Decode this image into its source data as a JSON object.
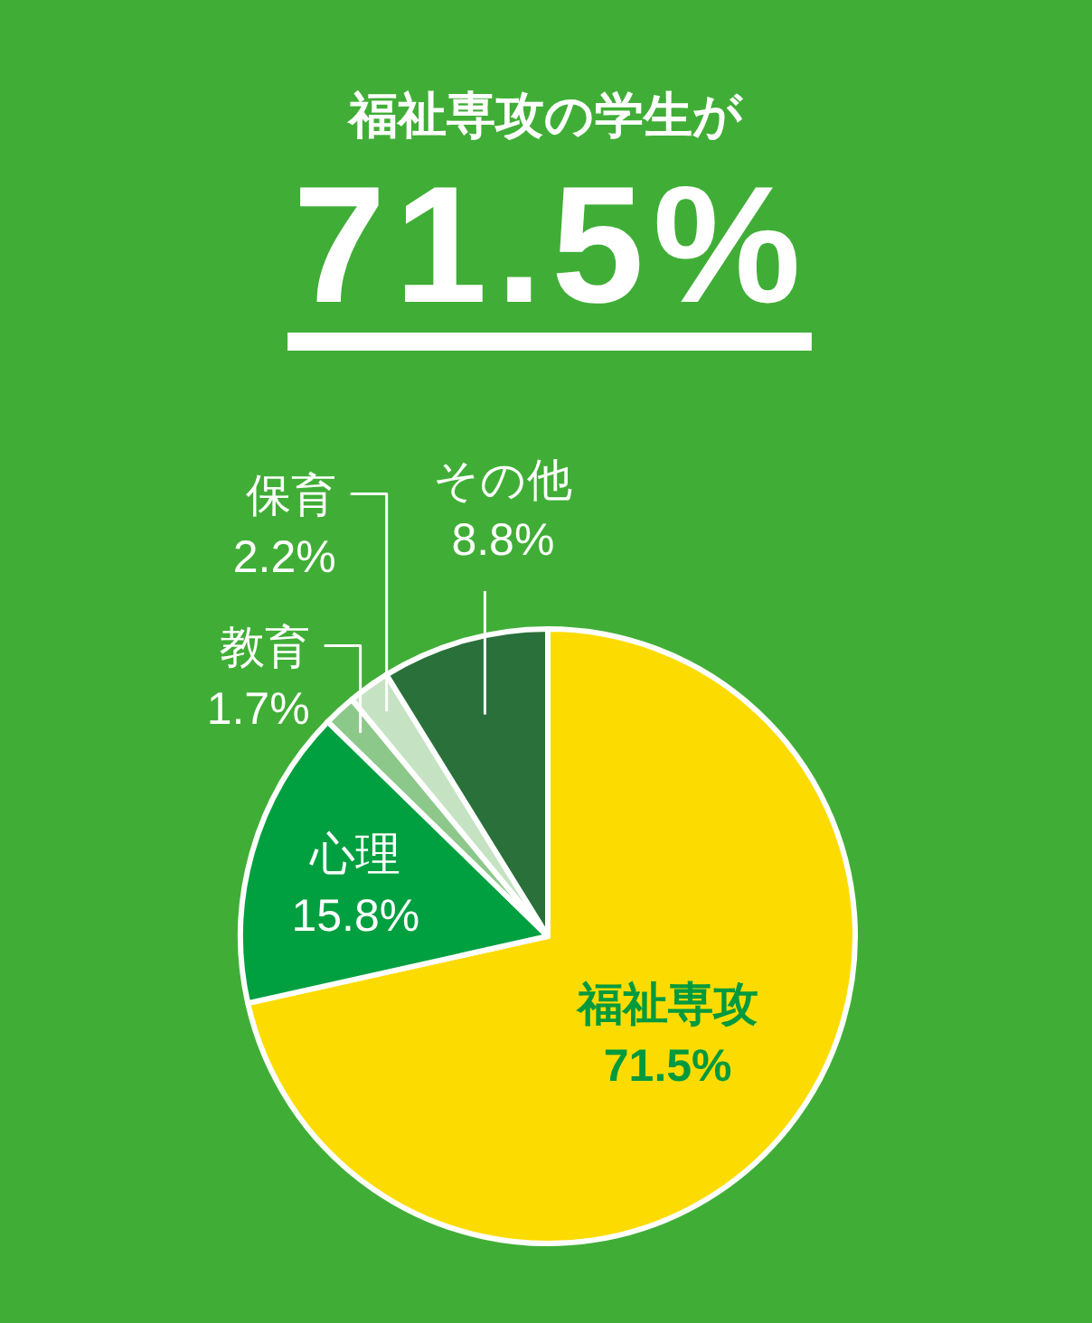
{
  "chart_data": {
    "type": "pie",
    "title": "福祉専攻の学生が",
    "subtitle": "71.5%",
    "categories": [
      "福祉専攻",
      "心理",
      "教育",
      "保育",
      "その他"
    ],
    "values": [
      71.5,
      15.8,
      1.7,
      2.2,
      8.8
    ],
    "colors": [
      "#fcdc00",
      "#00a040",
      "#8dc88b",
      "#c5e3c2",
      "#2a703b"
    ],
    "value_labels": [
      "71.5%",
      "15.8%",
      "1.7%",
      "2.2%",
      "8.8%"
    ]
  }
}
